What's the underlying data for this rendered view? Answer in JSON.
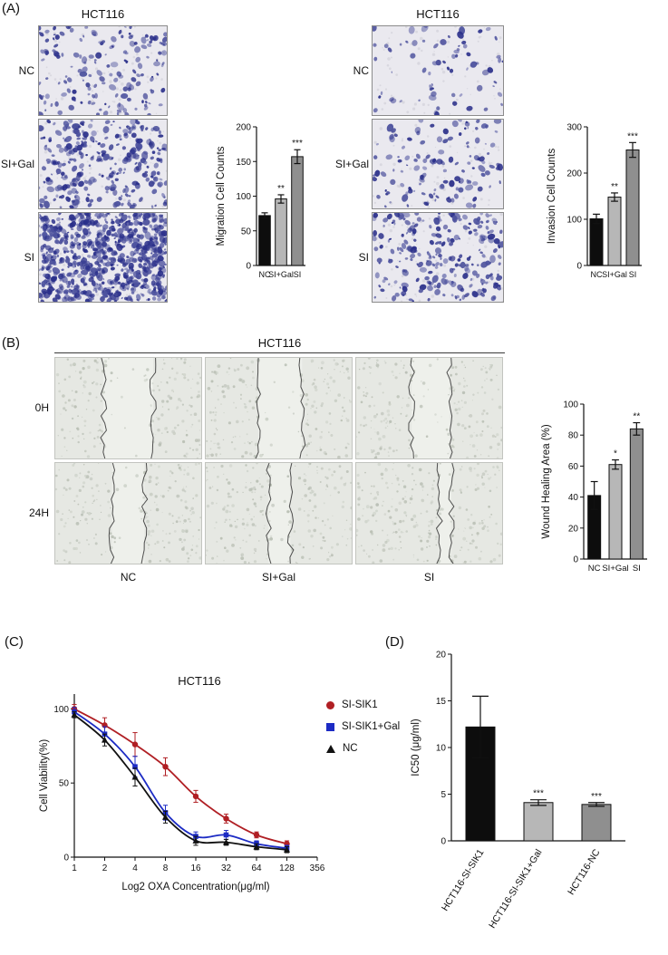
{
  "panels": {
    "a": {
      "label": "(A)",
      "migration": {
        "title": "HCT116",
        "row_labels": [
          "NC",
          "SI+Gal",
          "SI"
        ],
        "image_densities": [
          0.28,
          0.5,
          1.2
        ]
      },
      "invasion": {
        "title": "HCT116",
        "row_labels": [
          "NC",
          "SI+Gal",
          "SI"
        ],
        "image_densities": [
          0.12,
          0.22,
          0.4
        ]
      }
    },
    "b": {
      "label": "(B)",
      "title": "HCT116",
      "row_labels": [
        "0H",
        "24H"
      ],
      "col_labels": [
        "NC",
        "SI+Gal",
        "SI"
      ],
      "gap_edges_pct": [
        [
          33,
          67
        ],
        [
          36,
          66
        ],
        [
          38,
          64
        ],
        [
          39,
          61
        ],
        [
          43,
          58
        ],
        [
          57,
          65
        ]
      ]
    },
    "c": {
      "label": "(C)"
    },
    "d": {
      "label": "(D)"
    }
  },
  "colors": {
    "bar_nc": "#0d0d0d",
    "bar_si_gal": "#b7b7b7",
    "bar_si": "#8f8f8f",
    "cell_stain": "#2a2f8a",
    "axis": "#111111"
  },
  "chart_data": [
    {
      "id": "migration-counts",
      "type": "bar",
      "categories": [
        "NC",
        "SI+Gal",
        "SI"
      ],
      "values": [
        72,
        96,
        157
      ],
      "errors": [
        4,
        6,
        10
      ],
      "significance": [
        "",
        "**",
        "***"
      ],
      "bar_colors": [
        "#0d0d0d",
        "#b7b7b7",
        "#8f8f8f"
      ],
      "ylabel": "Migration Cell Counts",
      "ylim": [
        0,
        200
      ],
      "yticks": [
        0,
        50,
        100,
        150,
        200
      ]
    },
    {
      "id": "invasion-counts",
      "type": "bar",
      "categories": [
        "NC",
        "SI+Gal",
        "SI"
      ],
      "values": [
        101,
        148,
        250
      ],
      "errors": [
        10,
        9,
        16
      ],
      "significance": [
        "",
        "**",
        "***"
      ],
      "bar_colors": [
        "#0d0d0d",
        "#b7b7b7",
        "#8f8f8f"
      ],
      "ylabel": "Invasion Cell Counts",
      "ylim": [
        0,
        300
      ],
      "yticks": [
        0,
        100,
        200,
        300
      ]
    },
    {
      "id": "wound-healing",
      "type": "bar",
      "categories": [
        "NC",
        "SI+Gal",
        "SI"
      ],
      "values": [
        41,
        61,
        84
      ],
      "errors": [
        9,
        3,
        4
      ],
      "significance": [
        "",
        "*",
        "**"
      ],
      "bar_colors": [
        "#0d0d0d",
        "#b7b7b7",
        "#8f8f8f"
      ],
      "ylabel": "Wound Healing Area (%)",
      "ylim": [
        0,
        100
      ],
      "yticks": [
        0,
        20,
        40,
        60,
        80,
        100
      ]
    },
    {
      "id": "viability-curve",
      "type": "line",
      "title": "HCT116",
      "xlabel": "Log2 OXA Concentration(μg/ml)",
      "ylabel": "Cell Viability(%)",
      "xticks": [
        "1",
        "2",
        "4",
        "8",
        "16",
        "32",
        "64",
        "128",
        "356"
      ],
      "yticks": [
        0,
        50,
        100
      ],
      "ylim": [
        0,
        110
      ],
      "legend_position": "right",
      "series": [
        {
          "name": "SI-SIK1",
          "color": "#b01f24",
          "marker": "circle",
          "x": [
            1,
            2,
            4,
            8,
            16,
            32,
            64,
            128
          ],
          "values": [
            100,
            89,
            76,
            61,
            41,
            26,
            15,
            9
          ],
          "errors": [
            3,
            5,
            8,
            6,
            4,
            3,
            2,
            2
          ]
        },
        {
          "name": "SI-SIK1+Gal",
          "color": "#1c2bc4",
          "marker": "square",
          "x": [
            1,
            2,
            4,
            8,
            16,
            32,
            64,
            128
          ],
          "values": [
            98,
            83,
            61,
            30,
            14,
            15,
            9,
            6
          ],
          "errors": [
            3,
            5,
            7,
            5,
            3,
            3,
            2,
            2
          ]
        },
        {
          "name": "NC",
          "color": "#111111",
          "marker": "triangle",
          "x": [
            1,
            2,
            4,
            8,
            16,
            32,
            64,
            128
          ],
          "values": [
            96,
            79,
            54,
            27,
            11,
            10,
            7,
            5
          ],
          "errors": [
            2,
            4,
            6,
            4,
            3,
            2,
            2,
            2
          ]
        }
      ]
    },
    {
      "id": "ic50",
      "type": "bar",
      "categories": [
        "HCT116-SI-SIK1",
        "HCT116-SI-SIK1+Gal",
        "HCT116-NC"
      ],
      "values": [
        12.2,
        4.1,
        3.9
      ],
      "errors": [
        3.3,
        0.3,
        0.2
      ],
      "significance": [
        "",
        "***",
        "***"
      ],
      "bar_colors": [
        "#0d0d0d",
        "#b7b7b7",
        "#8f8f8f"
      ],
      "ylabel": "IC50 (μg/ml)",
      "ylim": [
        0,
        20
      ],
      "yticks": [
        0,
        5,
        10,
        15,
        20
      ]
    }
  ]
}
